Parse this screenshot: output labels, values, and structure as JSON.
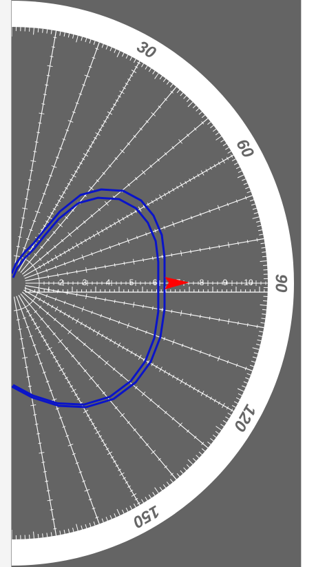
{
  "polar_plot": {
    "angle_labels": [
      "30",
      "60",
      "90",
      "120",
      "150"
    ],
    "angle_values": [
      30,
      60,
      90,
      120,
      150
    ],
    "radial_labels": [
      "2",
      "3",
      "4",
      "5",
      "6",
      "7",
      "8",
      "9",
      "10"
    ],
    "radial_values": [
      2,
      3,
      4,
      5,
      6,
      7,
      8,
      9,
      10
    ],
    "radial_max": 11
  },
  "colors": {
    "background": "#646464",
    "bezel": "#ffffff",
    "grid": "#ffffff",
    "curve": "#0a14c8",
    "pointer": "#ff0000",
    "label_text": "#666666"
  }
}
